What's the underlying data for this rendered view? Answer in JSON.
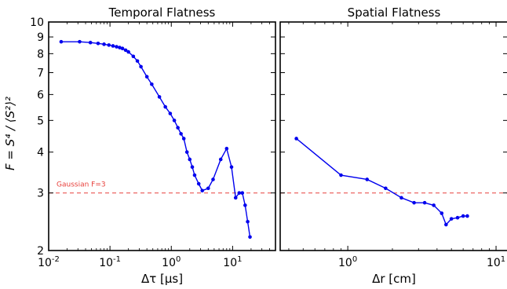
{
  "figure": {
    "ylabel": "F = S⁴ / ⟨S²⟩²"
  },
  "chart_data": [
    {
      "type": "line",
      "title": "Temporal Flatness",
      "xlabel": "Δτ [μs]",
      "ylabel": "F = S⁴ / ⟨S²⟩²",
      "xscale": "log",
      "yscale": "log",
      "xlim": [
        0.01,
        50
      ],
      "ylim": [
        2,
        10
      ],
      "xticks": [
        0.01,
        0.1,
        1,
        10
      ],
      "xtick_labels": [
        {
          "base": "10",
          "exp": "-2"
        },
        {
          "base": "10",
          "exp": "-1"
        },
        {
          "base": "10",
          "exp": "0"
        },
        {
          "base": "10",
          "exp": "1"
        }
      ],
      "yticks": [
        2,
        3,
        4,
        5,
        6,
        7,
        8,
        9,
        10
      ],
      "ytick_labels": [
        "2",
        "3",
        "4",
        "5",
        "6",
        "7",
        "8",
        "9",
        "10"
      ],
      "reference_line": {
        "y": 3,
        "label": "Gaussian F=3",
        "color": "#e8413c",
        "style": "dashed"
      },
      "series": [
        {
          "color": "#0000ee",
          "x": [
            0.016,
            0.032,
            0.048,
            0.064,
            0.08,
            0.096,
            0.112,
            0.128,
            0.144,
            0.16,
            0.18,
            0.2,
            0.24,
            0.28,
            0.32,
            0.4,
            0.48,
            0.64,
            0.8,
            0.96,
            1.12,
            1.28,
            1.44,
            1.6,
            1.8,
            2.0,
            2.2,
            2.4,
            2.8,
            3.2,
            4.0,
            4.8,
            6.4,
            8.0,
            9.6,
            11.2,
            12.8,
            14.4,
            16.0,
            17.6,
            19.2
          ],
          "y": [
            8.7,
            8.7,
            8.65,
            8.6,
            8.55,
            8.5,
            8.45,
            8.4,
            8.35,
            8.3,
            8.2,
            8.1,
            7.85,
            7.6,
            7.3,
            6.8,
            6.45,
            5.9,
            5.5,
            5.25,
            5.0,
            4.75,
            4.55,
            4.4,
            4.0,
            3.8,
            3.6,
            3.4,
            3.2,
            3.05,
            3.1,
            3.3,
            3.8,
            4.1,
            3.6,
            2.9,
            3.0,
            3.0,
            2.75,
            2.45,
            2.2
          ]
        }
      ]
    },
    {
      "type": "line",
      "title": "Spatial Flatness",
      "xlabel": "Δr [cm]",
      "xscale": "log",
      "yscale": "log",
      "xlim": [
        0.35,
        12
      ],
      "ylim": [
        2,
        10
      ],
      "xticks": [
        1,
        10
      ],
      "xtick_labels": [
        {
          "base": "10",
          "exp": "0"
        },
        {
          "base": "10",
          "exp": "1"
        }
      ],
      "reference_line": {
        "y": 3,
        "color": "#e8413c",
        "style": "dashed"
      },
      "series": [
        {
          "color": "#0000ee",
          "x": [
            0.45,
            0.9,
            1.35,
            1.8,
            2.3,
            2.8,
            3.3,
            3.8,
            4.3,
            4.6,
            5.0,
            5.5,
            6.0,
            6.4
          ],
          "y": [
            4.4,
            3.4,
            3.3,
            3.1,
            2.9,
            2.8,
            2.8,
            2.75,
            2.6,
            2.4,
            2.5,
            2.52,
            2.55,
            2.55
          ]
        }
      ]
    }
  ]
}
